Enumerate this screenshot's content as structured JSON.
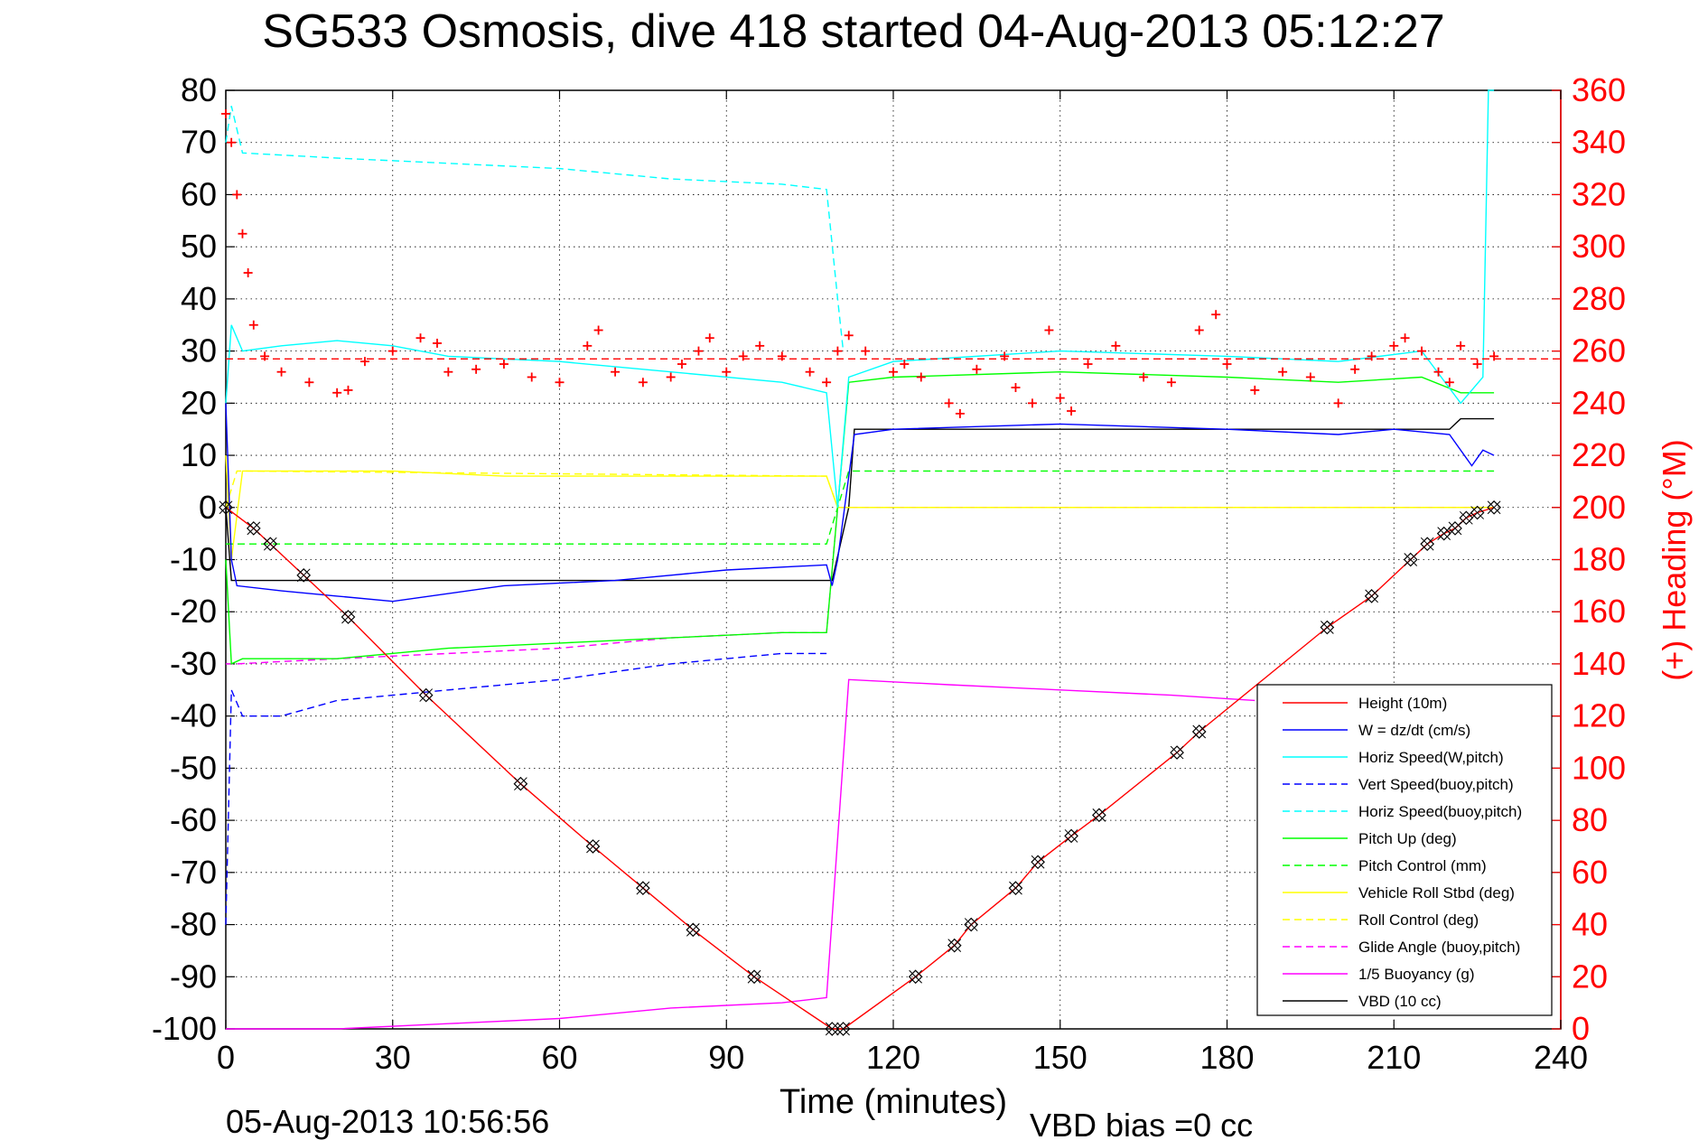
{
  "chart_data": {
    "type": "line",
    "title": "SG533 Osmosis, dive 418 started 04-Aug-2013 05:12:27",
    "xlabel": "Time (minutes)",
    "ylabel_right": "(+) Heading (°M)",
    "footer_left": "05-Aug-2013 10:56:56",
    "footer_right": "VBD bias =0 cc",
    "xlim": [
      0,
      240
    ],
    "ylim": [
      -100,
      80
    ],
    "ylim_right": [
      0,
      360
    ],
    "xticks": [
      0,
      30,
      60,
      90,
      120,
      150,
      180,
      210,
      240
    ],
    "yticks": [
      -100,
      -90,
      -80,
      -70,
      -60,
      -50,
      -40,
      -30,
      -20,
      -10,
      0,
      10,
      20,
      30,
      40,
      50,
      60,
      70,
      80
    ],
    "yticks_right": [
      0,
      20,
      40,
      60,
      80,
      100,
      120,
      140,
      160,
      180,
      200,
      220,
      240,
      260,
      280,
      300,
      320,
      340,
      360
    ],
    "grid": true,
    "legend_position": "lower-right",
    "series": [
      {
        "name": "Height (10m)",
        "color": "#ff0000",
        "style": "solid",
        "markers": "diamond-x",
        "points": [
          [
            0,
            0
          ],
          [
            5,
            -4
          ],
          [
            8,
            -7
          ],
          [
            14,
            -13
          ],
          [
            22,
            -21
          ],
          [
            36,
            -36
          ],
          [
            53,
            -53
          ],
          [
            66,
            -65
          ],
          [
            75,
            -73
          ],
          [
            84,
            -81
          ],
          [
            95,
            -90
          ],
          [
            109,
            -100
          ],
          [
            111,
            -100
          ],
          [
            124,
            -90
          ],
          [
            131,
            -84
          ],
          [
            134,
            -80
          ],
          [
            142,
            -73
          ],
          [
            146,
            -68
          ],
          [
            152,
            -63
          ],
          [
            157,
            -59
          ],
          [
            171,
            -47
          ],
          [
            175,
            -43
          ],
          [
            198,
            -23
          ],
          [
            206,
            -17
          ],
          [
            213,
            -10
          ],
          [
            216,
            -7
          ],
          [
            219,
            -5
          ],
          [
            221,
            -4
          ],
          [
            223,
            -2
          ],
          [
            225,
            -1
          ],
          [
            228,
            0
          ]
        ]
      },
      {
        "name": "W = dz/dt (cm/s)",
        "color": "#0000ff",
        "style": "solid",
        "points": [
          [
            0,
            20
          ],
          [
            1,
            -10
          ],
          [
            2,
            -15
          ],
          [
            10,
            -16
          ],
          [
            20,
            -17
          ],
          [
            30,
            -18
          ],
          [
            50,
            -15
          ],
          [
            70,
            -14
          ],
          [
            90,
            -12
          ],
          [
            108,
            -11
          ],
          [
            109,
            -15
          ],
          [
            110,
            -10
          ],
          [
            113,
            14
          ],
          [
            120,
            15
          ],
          [
            150,
            16
          ],
          [
            180,
            15
          ],
          [
            200,
            14
          ],
          [
            210,
            15
          ],
          [
            220,
            14
          ],
          [
            224,
            8
          ],
          [
            226,
            11
          ],
          [
            228,
            10
          ]
        ]
      },
      {
        "name": "Horiz Speed(W,pitch)",
        "color": "#00ffff",
        "style": "solid",
        "points": [
          [
            0,
            20
          ],
          [
            1,
            35
          ],
          [
            3,
            30
          ],
          [
            10,
            31
          ],
          [
            20,
            32
          ],
          [
            30,
            31
          ],
          [
            40,
            29
          ],
          [
            60,
            28
          ],
          [
            80,
            26
          ],
          [
            100,
            24
          ],
          [
            108,
            22
          ],
          [
            110,
            0
          ],
          [
            112,
            25
          ],
          [
            120,
            28
          ],
          [
            150,
            30
          ],
          [
            180,
            29
          ],
          [
            200,
            28
          ],
          [
            215,
            30
          ],
          [
            222,
            20
          ],
          [
            226,
            25
          ],
          [
            227,
            80
          ],
          [
            228,
            80
          ]
        ]
      },
      {
        "name": "Vert Speed(buoy,pitch)",
        "color": "#0000ff",
        "style": "dashed",
        "points": [
          [
            0,
            -80
          ],
          [
            1,
            -35
          ],
          [
            3,
            -40
          ],
          [
            10,
            -40
          ],
          [
            20,
            -37
          ],
          [
            40,
            -35
          ],
          [
            60,
            -33
          ],
          [
            80,
            -30
          ],
          [
            100,
            -28
          ],
          [
            108,
            -28
          ]
        ]
      },
      {
        "name": "Horiz Speed(buoy,pitch)",
        "color": "#00ffff",
        "style": "dashed",
        "points": [
          [
            0,
            70
          ],
          [
            1,
            77
          ],
          [
            3,
            68
          ],
          [
            20,
            67
          ],
          [
            40,
            66
          ],
          [
            60,
            65
          ],
          [
            80,
            63
          ],
          [
            100,
            62
          ],
          [
            108,
            61
          ],
          [
            110,
            40
          ],
          [
            111,
            30
          ]
        ]
      },
      {
        "name": "Pitch Up (deg)",
        "color": "#00ff00",
        "style": "solid",
        "points": [
          [
            0,
            -10
          ],
          [
            1,
            -30
          ],
          [
            3,
            -29
          ],
          [
            20,
            -29
          ],
          [
            40,
            -27
          ],
          [
            60,
            -26
          ],
          [
            80,
            -25
          ],
          [
            100,
            -24
          ],
          [
            108,
            -24
          ],
          [
            110,
            0
          ],
          [
            112,
            24
          ],
          [
            120,
            25
          ],
          [
            150,
            26
          ],
          [
            180,
            25
          ],
          [
            200,
            24
          ],
          [
            215,
            25
          ],
          [
            222,
            22
          ],
          [
            228,
            22
          ]
        ]
      },
      {
        "name": "Pitch Control (mm)",
        "color": "#00ff00",
        "style": "dashed",
        "points": [
          [
            0,
            -7
          ],
          [
            108,
            -7
          ],
          [
            110,
            0
          ],
          [
            112,
            7
          ],
          [
            228,
            7
          ]
        ]
      },
      {
        "name": "Vehicle Roll Stbd (deg)",
        "color": "#ffff00",
        "style": "solid",
        "points": [
          [
            0,
            10
          ],
          [
            1,
            -10
          ],
          [
            3,
            7
          ],
          [
            20,
            7
          ],
          [
            30,
            7
          ],
          [
            50,
            6
          ],
          [
            70,
            6
          ],
          [
            90,
            6
          ],
          [
            108,
            6
          ],
          [
            110,
            0
          ],
          [
            228,
            0
          ]
        ]
      },
      {
        "name": "Roll Control (deg)",
        "color": "#ffff00",
        "style": "dashed",
        "points": [
          [
            0,
            0
          ],
          [
            2,
            7
          ],
          [
            108,
            6
          ],
          [
            110,
            0
          ],
          [
            228,
            0
          ]
        ]
      },
      {
        "name": "Glide Angle (buoy,pitch)",
        "color": "#ff00ff",
        "style": "dashed",
        "points": [
          [
            0,
            -30
          ],
          [
            2,
            -30
          ],
          [
            20,
            -29
          ],
          [
            40,
            -28
          ],
          [
            60,
            -27
          ],
          [
            80,
            -25
          ],
          [
            100,
            -24
          ],
          [
            108,
            -24
          ],
          [
            110,
            0
          ],
          [
            228,
            0
          ]
        ]
      },
      {
        "name": "1/5 Buoyancy (g)",
        "color": "#ff00ff",
        "style": "solid",
        "points": [
          [
            0,
            -100
          ],
          [
            20,
            -100
          ],
          [
            40,
            -99
          ],
          [
            60,
            -98
          ],
          [
            80,
            -96
          ],
          [
            100,
            -95
          ],
          [
            108,
            -94
          ],
          [
            112,
            -33
          ],
          [
            130,
            -34
          ],
          [
            150,
            -35
          ],
          [
            170,
            -36
          ],
          [
            185,
            -37
          ]
        ]
      },
      {
        "name": "VBD (10 cc)",
        "color": "#000000",
        "style": "solid",
        "points": [
          [
            0,
            0
          ],
          [
            1,
            -14
          ],
          [
            109,
            -14
          ],
          [
            112,
            0
          ],
          [
            113,
            15
          ],
          [
            220,
            15
          ],
          [
            222,
            17
          ],
          [
            228,
            17
          ]
        ]
      }
    ],
    "heading": {
      "color": "#ff0000",
      "marker": "+",
      "axis": "right",
      "mean": 257,
      "points": [
        [
          0,
          351
        ],
        [
          1,
          340
        ],
        [
          2,
          320
        ],
        [
          3,
          305
        ],
        [
          4,
          290
        ],
        [
          5,
          270
        ],
        [
          7,
          258
        ],
        [
          10,
          252
        ],
        [
          15,
          248
        ],
        [
          20,
          244
        ],
        [
          22,
          245
        ],
        [
          25,
          256
        ],
        [
          30,
          260
        ],
        [
          35,
          265
        ],
        [
          38,
          263
        ],
        [
          40,
          252
        ],
        [
          45,
          253
        ],
        [
          50,
          255
        ],
        [
          55,
          250
        ],
        [
          60,
          248
        ],
        [
          65,
          262
        ],
        [
          67,
          268
        ],
        [
          70,
          252
        ],
        [
          75,
          248
        ],
        [
          80,
          250
        ],
        [
          82,
          255
        ],
        [
          85,
          260
        ],
        [
          87,
          265
        ],
        [
          90,
          252
        ],
        [
          93,
          258
        ],
        [
          96,
          262
        ],
        [
          100,
          258
        ],
        [
          105,
          252
        ],
        [
          108,
          248
        ],
        [
          110,
          260
        ],
        [
          112,
          266
        ],
        [
          115,
          260
        ],
        [
          120,
          252
        ],
        [
          122,
          255
        ],
        [
          125,
          250
        ],
        [
          130,
          240
        ],
        [
          132,
          236
        ],
        [
          135,
          253
        ],
        [
          140,
          258
        ],
        [
          142,
          246
        ],
        [
          145,
          240
        ],
        [
          148,
          268
        ],
        [
          150,
          242
        ],
        [
          152,
          237
        ],
        [
          155,
          255
        ],
        [
          160,
          262
        ],
        [
          165,
          250
        ],
        [
          170,
          248
        ],
        [
          175,
          268
        ],
        [
          178,
          274
        ],
        [
          180,
          255
        ],
        [
          185,
          245
        ],
        [
          190,
          252
        ],
        [
          195,
          250
        ],
        [
          200,
          240
        ],
        [
          203,
          253
        ],
        [
          206,
          258
        ],
        [
          210,
          262
        ],
        [
          212,
          265
        ],
        [
          215,
          260
        ],
        [
          218,
          252
        ],
        [
          220,
          248
        ],
        [
          222,
          262
        ],
        [
          225,
          255
        ],
        [
          228,
          258
        ]
      ]
    },
    "heading_mean_label": ""
  }
}
